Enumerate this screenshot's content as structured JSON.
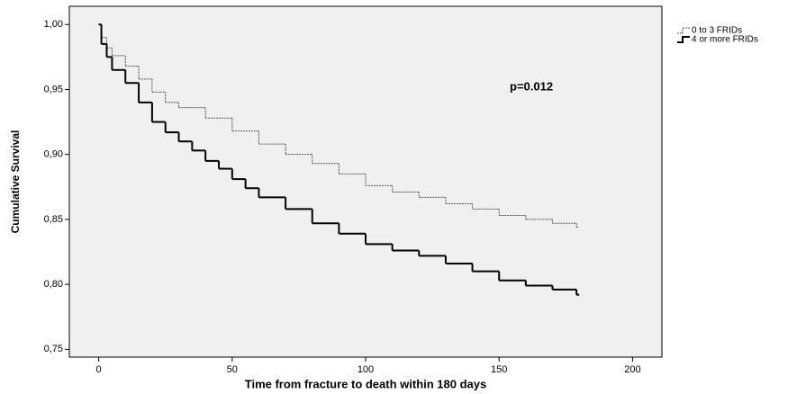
{
  "chart_data": {
    "type": "step",
    "annotation": "p=0.012",
    "x_label": "Time from fracture to death within 180 days",
    "y_label": "Cumulative Survival",
    "xlim": [
      -11,
      211
    ],
    "ylim": [
      0.744,
      1.014
    ],
    "xticks": [
      0,
      50,
      100,
      150,
      200
    ],
    "yticks": [
      {
        "value": 0.75,
        "label": "0,75"
      },
      {
        "value": 0.8,
        "label": "0,80"
      },
      {
        "value": 0.85,
        "label": "0,85"
      },
      {
        "value": 0.9,
        "label": "0,90"
      },
      {
        "value": 0.95,
        "label": "0,95"
      },
      {
        "value": 1.0,
        "label": "1,00"
      }
    ],
    "series": [
      {
        "name": "0 to 3 FRIDs",
        "color": "#555555",
        "dashed": true,
        "x": [
          0,
          1,
          3,
          5,
          10,
          15,
          20,
          25,
          30,
          40,
          50,
          60,
          70,
          80,
          90,
          100,
          110,
          120,
          130,
          140,
          150,
          160,
          170,
          179
        ],
        "values": [
          1.0,
          0.99,
          0.982,
          0.976,
          0.968,
          0.958,
          0.948,
          0.94,
          0.936,
          0.928,
          0.918,
          0.908,
          0.9,
          0.893,
          0.885,
          0.876,
          0.871,
          0.867,
          0.862,
          0.858,
          0.853,
          0.85,
          0.847,
          0.844
        ]
      },
      {
        "name": "4 or more FRIDs",
        "color": "#000000",
        "dashed": false,
        "x": [
          0,
          1,
          3,
          5,
          10,
          15,
          20,
          25,
          30,
          35,
          40,
          45,
          50,
          55,
          60,
          70,
          80,
          90,
          100,
          110,
          120,
          130,
          140,
          150,
          160,
          170,
          179
        ],
        "values": [
          1.0,
          0.985,
          0.975,
          0.965,
          0.955,
          0.94,
          0.925,
          0.917,
          0.91,
          0.903,
          0.895,
          0.889,
          0.881,
          0.874,
          0.867,
          0.858,
          0.847,
          0.839,
          0.831,
          0.826,
          0.822,
          0.816,
          0.81,
          0.803,
          0.799,
          0.796,
          0.792
        ]
      }
    ]
  }
}
